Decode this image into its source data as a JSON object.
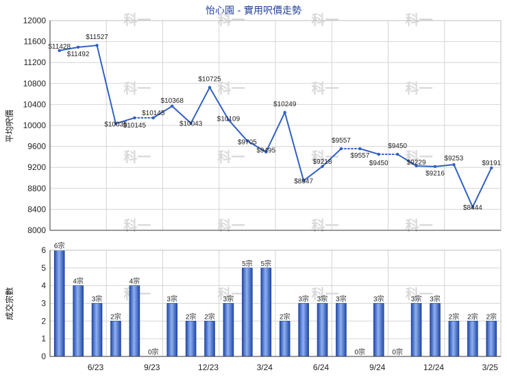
{
  "chart_data": [
    {
      "type": "line",
      "title": "怡心園 - 實用呎價走勢",
      "ylabel": "平均呎價",
      "ylim": [
        8000,
        12000
      ],
      "yticks": [
        8000,
        8400,
        8800,
        9200,
        9600,
        10000,
        10400,
        10800,
        11200,
        11600,
        12000
      ],
      "x_tick_labels": [
        "6/23",
        "9/23",
        "12/23",
        "3/24",
        "6/24",
        "9/24",
        "12/24",
        "3/25"
      ],
      "grid": true,
      "line_color": "#2f5fc4",
      "values": [
        11428,
        11492,
        11527,
        10035,
        10145,
        10145,
        10368,
        10043,
        10725,
        10109,
        9705,
        9495,
        10249,
        8947,
        9218,
        9557,
        9557,
        9450,
        9450,
        9229,
        9216,
        9253,
        8444,
        9191
      ],
      "labels": [
        "$11428",
        "$11492",
        "$11527",
        "$10035",
        "$10145",
        "$10145",
        "$10368",
        "$10043",
        "$10725",
        "$10109",
        "$9705",
        "$9495",
        "$10249",
        "$8947",
        "$9218",
        "$9557",
        "$9557",
        "$9450",
        "$9450",
        "$9229",
        "$9216",
        "$9253",
        "$8444",
        "$9191"
      ],
      "interpolated_after": [
        4,
        15,
        17
      ]
    },
    {
      "type": "bar",
      "ylabel": "成交宗數",
      "ylim": [
        0,
        6
      ],
      "yticks": [
        0,
        1,
        2,
        3,
        4,
        5,
        6
      ],
      "x_tick_labels": [
        "6/23",
        "9/23",
        "12/23",
        "3/24",
        "6/24",
        "9/24",
        "12/24",
        "3/25"
      ],
      "bar_color": "#3a67c8",
      "values": [
        6,
        4,
        3,
        2,
        4,
        0,
        3,
        2,
        2,
        3,
        5,
        5,
        2,
        3,
        3,
        3,
        0,
        3,
        0,
        3,
        3,
        2,
        2,
        2
      ],
      "labels": [
        "6宗",
        "4宗",
        "3宗",
        "2宗",
        "4宗",
        "0宗",
        "3宗",
        "2宗",
        "2宗",
        "3宗",
        "5宗",
        "5宗",
        "2宗",
        "3宗",
        "3宗",
        "3宗",
        "0宗",
        "3宗",
        "0宗",
        "3宗",
        "3宗",
        "2宗",
        "2宗",
        "2宗"
      ]
    }
  ],
  "watermark": "科一"
}
